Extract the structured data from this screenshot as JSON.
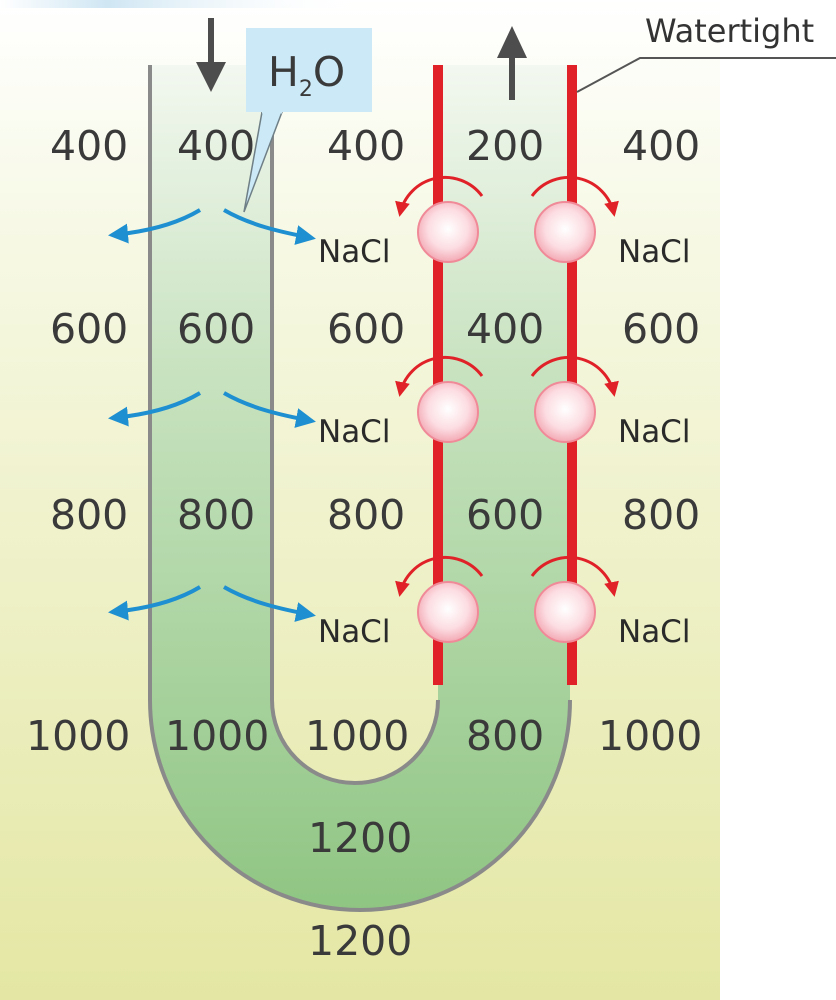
{
  "watertight_label": "Watertight",
  "water_label": {
    "main": "H",
    "subscript": "2",
    "suffix": "O"
  },
  "nacl_label": "NaCl",
  "rows": [
    {
      "interstitial_left": "400",
      "descending": "400",
      "middle": "400",
      "ascending": "200",
      "interstitial_right": "400"
    },
    {
      "interstitial_left": "600",
      "descending": "600",
      "middle": "600",
      "ascending": "400",
      "interstitial_right": "600"
    },
    {
      "interstitial_left": "800",
      "descending": "800",
      "middle": "800",
      "ascending": "600",
      "interstitial_right": "800"
    },
    {
      "interstitial_left": "1000",
      "descending": "1000",
      "middle": "1000",
      "ascending": "800",
      "interstitial_right": "1000"
    }
  ],
  "bottom": {
    "loop": "1200",
    "interstitial": "1200"
  },
  "colors": {
    "background_top": "#ffffff",
    "background_bottom": "#e6e9a8",
    "loop_fill_top": "#e9f3e6",
    "loop_fill_bottom": "#9ccc8f",
    "loop_outline": "#8a8a8a",
    "watertight_wall": "#e02228",
    "water_arrow": "#1e8fd0",
    "sodium_pump": "#fbd6dc",
    "pump_arrow": "#e02228",
    "flow_arrow": "#4d4d4d",
    "h2o_box": "#cbe9f7"
  }
}
